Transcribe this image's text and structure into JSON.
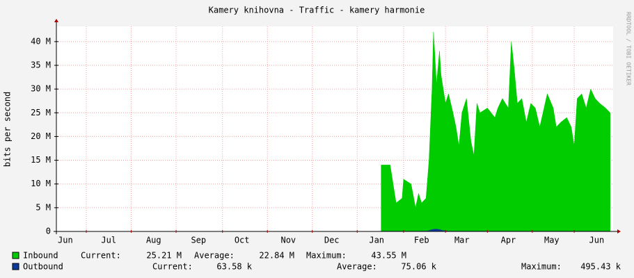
{
  "chart_data": {
    "type": "area",
    "title": "Kamery knihovna - Traffic - kamery harmonie",
    "y_label": "bits per second",
    "watermark": "RRDTOOL / TOBI OETIKER",
    "xlim": [
      0,
      372
    ],
    "xticks": [
      {
        "value": 6,
        "label": "Jun"
      },
      {
        "value": 35,
        "label": "Jul"
      },
      {
        "value": 65,
        "label": "Aug"
      },
      {
        "value": 95,
        "label": "Sep"
      },
      {
        "value": 124,
        "label": "Oct"
      },
      {
        "value": 155,
        "label": "Nov"
      },
      {
        "value": 184,
        "label": "Dec"
      },
      {
        "value": 214,
        "label": "Jan"
      },
      {
        "value": 244,
        "label": "Feb"
      },
      {
        "value": 271,
        "label": "Mar"
      },
      {
        "value": 302,
        "label": "Apr"
      },
      {
        "value": 331,
        "label": "May"
      },
      {
        "value": 361,
        "label": "Jun"
      }
    ],
    "x_grid_lines": [
      20,
      50,
      80,
      111,
      141,
      171,
      201,
      232,
      260,
      288,
      318,
      346
    ],
    "ylim": [
      0,
      43.2
    ],
    "yticks": [
      {
        "value": 0,
        "label": "0"
      },
      {
        "value": 5,
        "label": "5 M"
      },
      {
        "value": 10,
        "label": "10 M"
      },
      {
        "value": 15,
        "label": "15 M"
      },
      {
        "value": 20,
        "label": "20 M"
      },
      {
        "value": 25,
        "label": "25 M"
      },
      {
        "value": 30,
        "label": "30 M"
      },
      {
        "value": 35,
        "label": "35 M"
      },
      {
        "value": 40,
        "label": "40 M"
      }
    ],
    "grid": true,
    "series": [
      {
        "name": "Inbound",
        "color": "#00cc00",
        "x": [
          217,
          223,
          225,
          227,
          231,
          232,
          237,
          240,
          242,
          244,
          247,
          249,
          251,
          252,
          254,
          256,
          257,
          260,
          262,
          265,
          267,
          269,
          271,
          274,
          277,
          279,
          281,
          283,
          288,
          293,
          295,
          298,
          302,
          304,
          306,
          308,
          311,
          314,
          317,
          320,
          323,
          328,
          332,
          334,
          337,
          341,
          344,
          346,
          348,
          351,
          354,
          357,
          360,
          363,
          367,
          370
        ],
        "values": [
          14,
          14,
          10,
          6,
          7,
          11,
          10,
          5,
          8,
          6,
          7,
          15,
          30,
          42,
          31,
          38,
          33,
          27,
          29,
          25,
          22,
          18,
          25,
          28,
          19,
          16,
          27,
          25,
          26,
          24,
          26,
          28,
          26,
          40,
          34,
          27,
          28,
          23,
          27,
          26,
          22,
          29,
          26,
          22,
          23,
          24,
          22,
          18,
          28,
          29,
          26,
          30,
          28,
          27,
          26,
          25
        ],
        "stats": [
          {
            "label": "Current:",
            "value": "25.21 M"
          },
          {
            "label": "Average:",
            "value": "22.84 M"
          },
          {
            "label": "Maximum:",
            "value": "43.55 M"
          }
        ]
      },
      {
        "name": "Outbound",
        "color": "#0b3a9a",
        "x": [
          217,
          240,
          248,
          250,
          252,
          254,
          256,
          258,
          262,
          300,
          370
        ],
        "values": [
          0.06,
          0.06,
          0.1,
          0.3,
          0.45,
          0.5,
          0.4,
          0.2,
          0.07,
          0.06,
          0.06
        ],
        "stats": [
          {
            "label": "Current:",
            "value": "63.58 k"
          },
          {
            "label": "Average:",
            "value": "75.06 k"
          },
          {
            "label": "Maximum:",
            "value": "495.43 k"
          }
        ]
      }
    ]
  }
}
